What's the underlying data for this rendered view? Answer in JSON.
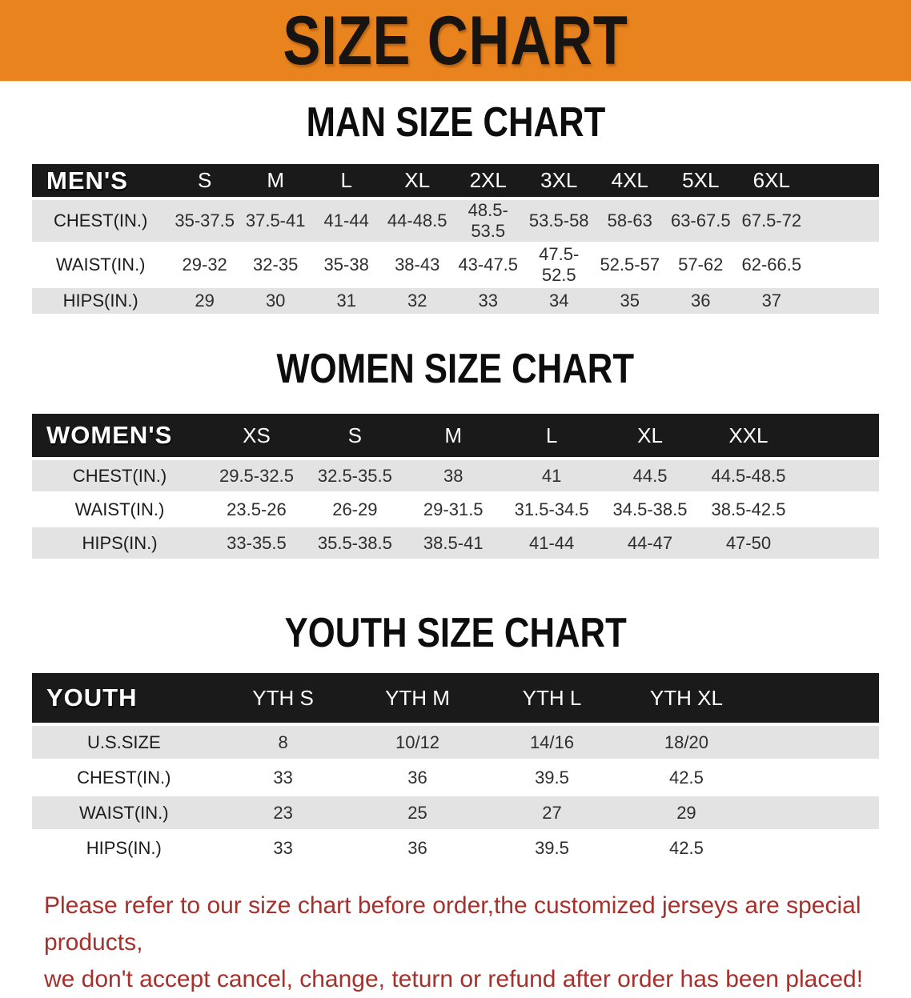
{
  "banner": {
    "title": "SIZE CHART",
    "bg_color": "#E8831E",
    "text_color": "#181411"
  },
  "colors": {
    "table_header_bg": "#1a1a1a",
    "row_shade": "#E3E3E3",
    "disclaimer_red": "#A6302C"
  },
  "sections": [
    {
      "heading": "MAN SIZE CHART",
      "table": {
        "corner_label": "MEN'S",
        "columns": [
          "S",
          "M",
          "L",
          "XL",
          "2XL",
          "3XL",
          "4XL",
          "5XL",
          "6XL"
        ],
        "rows": [
          {
            "label": "CHEST(IN.)",
            "values": [
              "35-37.5",
              "37.5-41",
              "41-44",
              "44-48.5",
              "48.5-53.5",
              "53.5-58",
              "58-63",
              "63-67.5",
              "67.5-72"
            ]
          },
          {
            "label": "WAIST(IN.)",
            "values": [
              "29-32",
              "32-35",
              "35-38",
              "38-43",
              "43-47.5",
              "47.5-52.5",
              "52.5-57",
              "57-62",
              "62-66.5"
            ]
          },
          {
            "label": "HIPS(IN.)",
            "values": [
              "29",
              "30",
              "31",
              "32",
              "33",
              "34",
              "35",
              "36",
              "37"
            ]
          }
        ]
      }
    },
    {
      "heading": "WOMEN SIZE CHART",
      "table": {
        "corner_label": "WOMEN'S",
        "columns": [
          "XS",
          "S",
          "M",
          "L",
          "XL",
          "XXL"
        ],
        "rows": [
          {
            "label": "CHEST(IN.)",
            "values": [
              "29.5-32.5",
              "32.5-35.5",
              "38",
              "41",
              "44.5",
              "44.5-48.5"
            ]
          },
          {
            "label": "WAIST(IN.)",
            "values": [
              "23.5-26",
              "26-29",
              "29-31.5",
              "31.5-34.5",
              "34.5-38.5",
              "38.5-42.5"
            ]
          },
          {
            "label": "HIPS(IN.)",
            "values": [
              "33-35.5",
              "35.5-38.5",
              "38.5-41",
              "41-44",
              "44-47",
              "47-50"
            ]
          }
        ]
      }
    },
    {
      "heading": "YOUTH SIZE CHART",
      "table": {
        "corner_label": "YOUTH",
        "columns": [
          "YTH S",
          "YTH M",
          "YTH L",
          "YTH XL"
        ],
        "rows": [
          {
            "label": "U.S.SIZE",
            "values": [
              "8",
              "10/12",
              "14/16",
              "18/20"
            ]
          },
          {
            "label": "CHEST(IN.)",
            "values": [
              "33",
              "36",
              "39.5",
              "42.5"
            ]
          },
          {
            "label": "WAIST(IN.)",
            "values": [
              "23",
              "25",
              "27",
              "29"
            ]
          },
          {
            "label": "HIPS(IN.)",
            "values": [
              "33",
              "36",
              "39.5",
              "42.5"
            ]
          }
        ]
      }
    }
  ],
  "disclaimer": {
    "line1": "Please refer to our size chart before order,the customized jerseys are special products,",
    "line2": "we don't accept cancel, change, teturn or refund after order has been placed!"
  }
}
